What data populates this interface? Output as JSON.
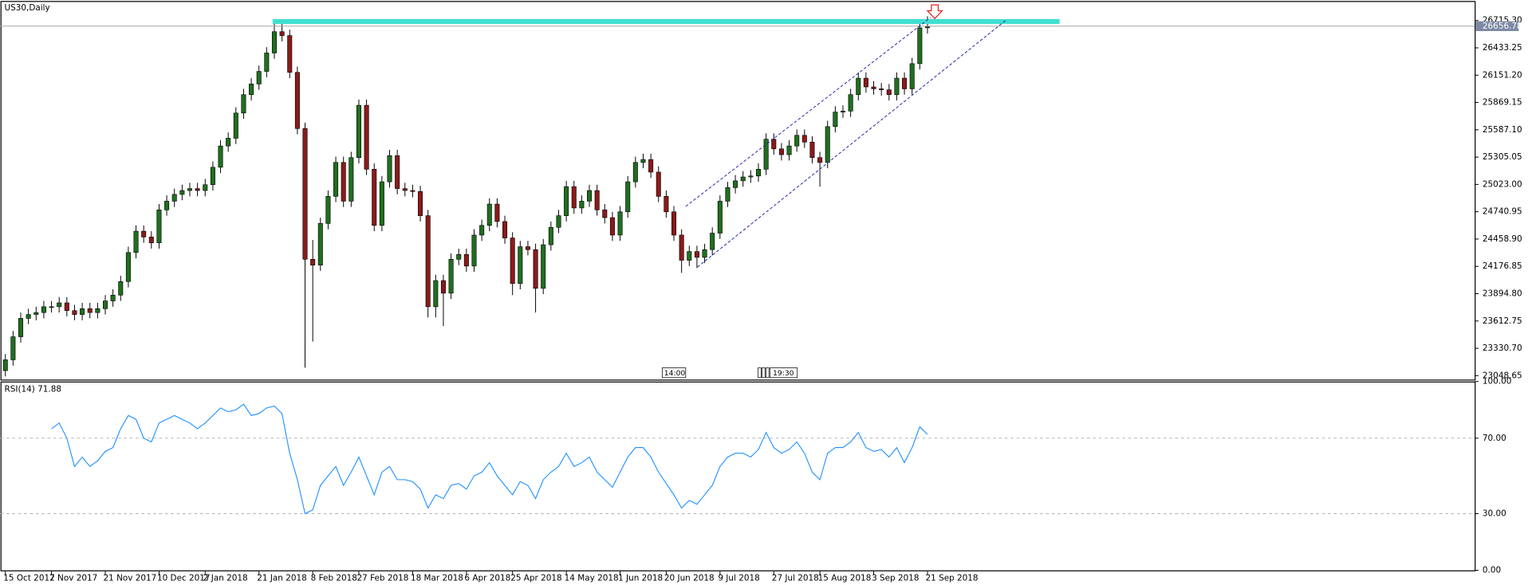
{
  "chart_data": [
    {
      "type": "candlestick",
      "title": "US30,Daily",
      "categories": [
        "15 Oct 2017",
        null,
        null,
        null,
        null,
        null,
        "2 Nov 2017",
        null,
        null,
        null,
        null,
        null,
        null,
        "21 Nov 2017",
        null,
        null,
        null,
        null,
        null,
        null,
        "10 Dec 2017",
        null,
        null,
        null,
        null,
        null,
        "2 Jan 2018",
        null,
        null,
        null,
        null,
        null,
        null,
        "21 Jan 2018",
        null,
        null,
        null,
        null,
        null,
        null,
        "8 Feb 2018",
        null,
        null,
        null,
        null,
        null,
        "27 Feb 2018",
        null,
        null,
        null,
        null,
        null,
        null,
        "18 Mar 2018",
        null,
        null,
        null,
        null,
        null,
        null,
        "6 Apr 2018",
        null,
        null,
        null,
        null,
        null,
        "25 Apr 2018",
        null,
        null,
        null,
        null,
        null,
        null,
        "14 May 2018",
        null,
        null,
        null,
        null,
        null,
        null,
        "1 Jun 2018",
        null,
        null,
        null,
        null,
        null,
        "20 Jun 2018",
        null,
        null,
        null,
        null,
        null,
        null,
        "9 Jul 2018",
        null,
        null,
        null,
        null,
        null,
        null,
        "27 Jul 2018",
        null,
        null,
        null,
        null,
        null,
        "15 Aug 2018",
        null,
        null,
        null,
        null,
        null,
        null,
        "3 Sep 2018",
        null,
        null,
        null,
        null,
        null,
        null,
        "21 Sep 2018"
      ],
      "open": [
        23100,
        23212,
        23450,
        23640,
        23680,
        23700,
        23760,
        23760,
        23800,
        23720,
        23680,
        23740,
        23700,
        23740,
        23820,
        23880,
        24020,
        24320,
        24540,
        24480,
        24420,
        24760,
        24850,
        24920,
        24960,
        24980,
        24960,
        25020,
        25200,
        25420,
        25500,
        25760,
        25950,
        26060,
        26190,
        26380,
        26600,
        26560,
        26180,
        25600,
        24250,
        24190,
        24620,
        24900,
        25250,
        24850,
        25300,
        25840,
        25180,
        24600,
        25050,
        25320,
        24980,
        24960,
        24950,
        24700,
        23760,
        24030,
        23900,
        24250,
        24300,
        24180,
        24500,
        24600,
        24820,
        24640,
        24470,
        24000,
        24380,
        24350,
        23950,
        24400,
        24580,
        24700,
        25000,
        24780,
        24850,
        24960,
        24760,
        24680,
        24500,
        24740,
        25050,
        25250,
        25280,
        25150,
        24900,
        24740,
        24500,
        24240,
        24330,
        24270,
        24350,
        24520,
        24850,
        24990,
        25060,
        25100,
        25110,
        25180,
        25490,
        25390,
        25330,
        25420,
        25530,
        25460,
        25300,
        25250,
        25620,
        25770,
        25780,
        25950,
        26120,
        26030,
        26010,
        26000,
        25950,
        26120,
        26010,
        26270,
        26640
      ],
      "high": [
        23272,
        23510,
        23700,
        23740,
        23760,
        23820,
        23820,
        23860,
        23860,
        23780,
        23800,
        23800,
        23800,
        23880,
        23940,
        24080,
        24380,
        24600,
        24600,
        24540,
        24820,
        24910,
        24980,
        25020,
        25040,
        25040,
        25080,
        25260,
        25480,
        25560,
        25820,
        26010,
        26120,
        26250,
        26440,
        26700,
        26700,
        26620,
        26240,
        25660,
        24450,
        24680,
        24960,
        25310,
        25310,
        25360,
        25900,
        25900,
        25240,
        25110,
        25380,
        25380,
        25040,
        25020,
        25010,
        24760,
        24090,
        24090,
        24310,
        24360,
        24360,
        24560,
        24660,
        24880,
        24880,
        24700,
        24530,
        24440,
        24440,
        24410,
        24460,
        24640,
        24760,
        25060,
        25060,
        24910,
        25020,
        25020,
        24820,
        24740,
        24800,
        25110,
        25310,
        25340,
        25340,
        25210,
        24960,
        24800,
        24560,
        24390,
        24390,
        24410,
        24580,
        24910,
        25050,
        25120,
        25160,
        25170,
        25240,
        25550,
        25550,
        25450,
        25480,
        25590,
        25590,
        25520,
        25360,
        25680,
        25830,
        25840,
        26010,
        26180,
        26180,
        26090,
        26070,
        26060,
        26180,
        26180,
        26330,
        26700,
        26760
      ],
      "low": [
        23040,
        23152,
        23390,
        23580,
        23620,
        23640,
        23700,
        23700,
        23660,
        23620,
        23620,
        23640,
        23640,
        23680,
        23760,
        23820,
        23960,
        24260,
        24420,
        24360,
        24360,
        24700,
        24790,
        24860,
        24900,
        24900,
        24900,
        24960,
        25140,
        25360,
        25440,
        25700,
        25890,
        26000,
        26130,
        26320,
        26500,
        26120,
        25540,
        23130,
        23400,
        24130,
        24560,
        24840,
        24790,
        24790,
        25240,
        25120,
        24540,
        24540,
        24990,
        24920,
        24900,
        24890,
        24640,
        23650,
        23650,
        23560,
        23840,
        24190,
        24120,
        24120,
        24440,
        24540,
        24580,
        24410,
        23880,
        23940,
        24290,
        23700,
        23890,
        24340,
        24520,
        24640,
        24720,
        24720,
        24790,
        24700,
        24620,
        24440,
        24440,
        24680,
        24990,
        25190,
        25090,
        24840,
        24680,
        24440,
        24110,
        24180,
        24160,
        24210,
        24290,
        24460,
        24790,
        24930,
        25000,
        25040,
        25050,
        25120,
        25330,
        25270,
        25270,
        25360,
        25400,
        25240,
        25000,
        25190,
        25560,
        25710,
        25720,
        25890,
        25970,
        25950,
        25940,
        25890,
        25890,
        25950,
        25950,
        26210,
        26580
      ],
      "close": [
        23212,
        23450,
        23640,
        23680,
        23700,
        23760,
        23760,
        23800,
        23720,
        23680,
        23740,
        23700,
        23740,
        23820,
        23880,
        24020,
        24320,
        24540,
        24480,
        24420,
        24760,
        24850,
        24920,
        24960,
        24980,
        24960,
        25020,
        25200,
        25420,
        25500,
        25760,
        25950,
        26060,
        26190,
        26380,
        26600,
        26560,
        26180,
        25600,
        24250,
        24190,
        24620,
        24900,
        25250,
        24850,
        25300,
        25840,
        25180,
        24600,
        25050,
        25320,
        24980,
        24960,
        24950,
        24700,
        23760,
        24030,
        23900,
        24250,
        24300,
        24180,
        24500,
        24600,
        24820,
        24640,
        24470,
        24000,
        24380,
        24350,
        23950,
        24400,
        24580,
        24700,
        25000,
        24780,
        24850,
        24960,
        24760,
        24680,
        24500,
        24740,
        25050,
        25250,
        25280,
        25150,
        24900,
        24740,
        24500,
        24240,
        24330,
        24270,
        24350,
        24520,
        24850,
        24990,
        25060,
        25100,
        25110,
        25180,
        25490,
        25390,
        25330,
        25420,
        25530,
        25460,
        25300,
        25250,
        25620,
        25770,
        25780,
        25950,
        26120,
        26030,
        26010,
        26000,
        25950,
        26120,
        26010,
        26270,
        26640,
        26650
      ],
      "up_color": "#1f6f1f",
      "down_color": "#8b1a1a",
      "ylim": [
        23008,
        26907
      ],
      "yticks": [
        {
          "value": 26715.3,
          "label": "26715.30"
        },
        26433.25,
        {
          "value": 26151.2,
          "label": "26151.20"
        },
        25869.15,
        {
          "value": 25587.1,
          "label": "25587.10"
        },
        25305.05,
        {
          "value": 25023.0,
          "label": "25023.00"
        },
        24740.95,
        {
          "value": 24458.9,
          "label": "24458.90"
        },
        24176.85,
        {
          "value": 23894.8,
          "label": "23894.80"
        },
        23612.75,
        {
          "value": 23330.7,
          "label": "23330.70"
        },
        23048.65
      ],
      "last_price": 26656.78,
      "annotations": [
        "14:00",
        "19:30"
      ]
    },
    {
      "type": "line",
      "title": "RSI(14) 71.88",
      "color": "#1e90ff",
      "values": [
        null,
        null,
        null,
        null,
        null,
        null,
        75,
        78,
        70,
        55,
        60,
        55,
        58,
        63,
        65,
        75,
        82,
        80,
        70,
        68,
        78,
        80,
        82,
        80,
        78,
        75,
        78,
        82,
        86,
        84,
        85,
        88,
        82,
        83,
        86,
        87,
        83,
        62,
        48,
        30,
        32,
        45,
        50,
        55,
        45,
        52,
        60,
        50,
        40,
        52,
        55,
        48,
        48,
        47,
        43,
        33,
        40,
        38,
        45,
        46,
        43,
        50,
        52,
        57,
        50,
        45,
        40,
        47,
        45,
        38,
        48,
        52,
        55,
        62,
        55,
        57,
        60,
        52,
        48,
        44,
        52,
        60,
        65,
        65,
        60,
        52,
        46,
        40,
        33,
        37,
        35,
        40,
        45,
        55,
        60,
        62,
        62,
        60,
        64,
        73,
        65,
        62,
        64,
        68,
        62,
        52,
        48,
        62,
        65,
        65,
        68,
        73,
        65,
        63,
        64,
        60,
        65,
        57,
        65,
        76,
        72
      ],
      "ylim": [
        0,
        100
      ],
      "yticks": [
        {
          "value": 100,
          "label": "100.00"
        },
        {
          "value": 70,
          "label": "70.00"
        },
        {
          "value": 30,
          "label": "30.00"
        },
        {
          "value": 0,
          "label": "0.00"
        }
      ]
    }
  ]
}
